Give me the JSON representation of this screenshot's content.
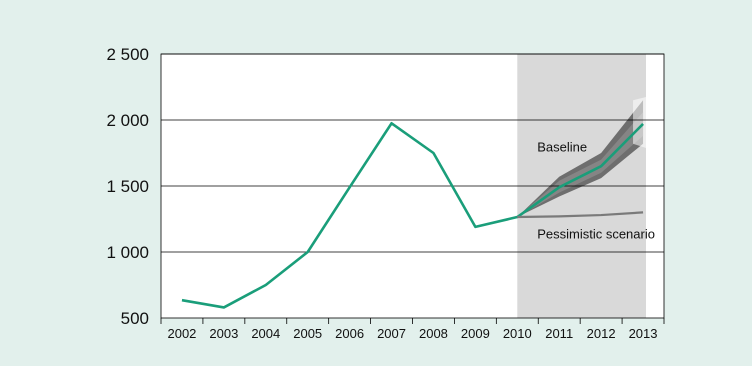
{
  "chart_data": {
    "type": "line",
    "title": "",
    "xlabel": "",
    "ylabel": "",
    "x": [
      "2002",
      "2003",
      "2004",
      "2005",
      "2006",
      "2007",
      "2008",
      "2009",
      "2010",
      "2011",
      "2012",
      "2013"
    ],
    "ylim": [
      500,
      2500
    ],
    "yticks": [
      500,
      1000,
      1500,
      2000,
      2500
    ],
    "ytick_labels": [
      "500",
      "1 000",
      "1 500",
      "2 000",
      "2 500"
    ],
    "grid": "horizontal",
    "forecast_shading_from": "2010",
    "series": [
      {
        "name": "",
        "color": "#1a9e7a",
        "values": [
          635,
          580,
          750,
          1000,
          1490,
          1975,
          1750,
          1190,
          1265,
          1490,
          1650,
          1970
        ]
      },
      {
        "name": "",
        "color": "#7a7a7a",
        "values": [
          null,
          null,
          null,
          null,
          null,
          null,
          null,
          null,
          1265,
          1270,
          1280,
          1300
        ]
      }
    ],
    "fan_band": {
      "x": [
        "2010",
        "2011",
        "2012",
        "2013"
      ],
      "layers": [
        {
          "color": "#5a5a5a",
          "lower": [
            1265,
            1420,
            1560,
            1820
          ],
          "upper": [
            1265,
            1570,
            1750,
            2150
          ]
        },
        {
          "color": "#8a8a8a",
          "lower": [
            1265,
            1450,
            1600,
            1880
          ],
          "upper": [
            1265,
            1540,
            1700,
            2060
          ]
        }
      ]
    },
    "annotations": [
      {
        "text": "Baseline",
        "x": "2011",
        "y": 1800
      },
      {
        "text": "Pessimistic scenario",
        "x": "2011",
        "y": 1140
      }
    ]
  }
}
